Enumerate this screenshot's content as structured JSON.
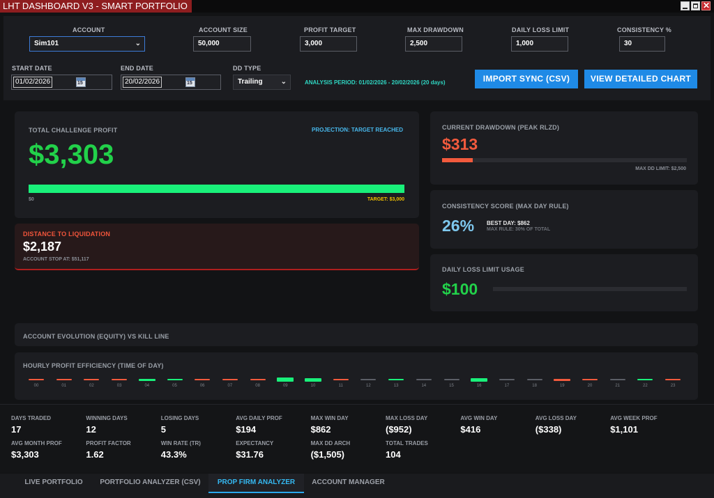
{
  "window": {
    "title": "LHT DASHBOARD V3 - SMART PORTFOLIO"
  },
  "settings": {
    "account_label": "ACCOUNT",
    "account_value": "Sim101",
    "account_size_label": "ACCOUNT SIZE",
    "account_size_value": "50,000",
    "profit_target_label": "PROFIT TARGET",
    "profit_target_value": "3,000",
    "max_drawdown_label": "MAX DRAWDOWN",
    "max_drawdown_value": "2,500",
    "daily_loss_label": "DAILY LOSS LIMIT",
    "daily_loss_value": "1,000",
    "consistency_label": "CONSISTENCY %",
    "consistency_value": "30",
    "start_date_label": "START DATE",
    "start_date_value": "01/02/2026",
    "end_date_label": "END DATE",
    "end_date_value": "20/02/2026",
    "calendar_day": "15",
    "dd_type_label": "DD TYPE",
    "dd_type_value": "Trailing",
    "analysis_period": "ANALYSIS PERIOD: 01/02/2026 - 20/02/2026 (20 days)",
    "import_button": "IMPORT SYNC (CSV)",
    "chart_button": "VIEW DETAILED CHART"
  },
  "profit_card": {
    "title": "TOTAL CHALLENGE PROFIT",
    "projection": "PROJECTION: TARGET REACHED",
    "value": "$3,303",
    "progress": 1.0,
    "scale_start": "$0",
    "target": "TARGET: $3,000"
  },
  "liquidation_card": {
    "title": "DISTANCE TO LIQUIDATION",
    "value": "$2,187",
    "stop": "ACCOUNT STOP AT: $51,117"
  },
  "drawdown_card": {
    "title": "CURRENT DRAWDOWN (PEAK RLZD)",
    "value": "$313",
    "progress": 0.125,
    "limit": "MAX DD LIMIT: $2,500"
  },
  "consistency_card": {
    "title": "CONSISTENCY SCORE (MAX DAY RULE)",
    "value": "26%",
    "best_day": "BEST DAY: $862",
    "max_rule": "MAX RULE: 30% OF TOTAL"
  },
  "daily_loss_card": {
    "title": "DAILY LOSS LIMIT USAGE",
    "value": "$100",
    "progress": 0.0
  },
  "equity_section": {
    "title": "ACCOUNT EVOLUTION (EQUITY) VS KILL LINE"
  },
  "hourly_section": {
    "title": "HOURLY PROFIT EFFICIENCY (TIME OF DAY)",
    "hours": [
      {
        "label": "00",
        "state": "loss",
        "size": 1
      },
      {
        "label": "01",
        "state": "loss",
        "size": 1
      },
      {
        "label": "02",
        "state": "loss",
        "size": 1
      },
      {
        "label": "03",
        "state": "loss",
        "size": 1
      },
      {
        "label": "04",
        "state": "win",
        "size": 2
      },
      {
        "label": "05",
        "state": "win",
        "size": 1
      },
      {
        "label": "06",
        "state": "loss",
        "size": 1
      },
      {
        "label": "07",
        "state": "loss",
        "size": 1
      },
      {
        "label": "08",
        "state": "loss",
        "size": 1
      },
      {
        "label": "09",
        "state": "win",
        "size": 4
      },
      {
        "label": "10",
        "state": "win",
        "size": 3
      },
      {
        "label": "11",
        "state": "loss",
        "size": 1
      },
      {
        "label": "12",
        "state": "neutral",
        "size": 1
      },
      {
        "label": "13",
        "state": "win",
        "size": 1
      },
      {
        "label": "14",
        "state": "neutral",
        "size": 1
      },
      {
        "label": "15",
        "state": "neutral",
        "size": 1
      },
      {
        "label": "16",
        "state": "win",
        "size": 3
      },
      {
        "label": "17",
        "state": "neutral",
        "size": 1
      },
      {
        "label": "18",
        "state": "neutral",
        "size": 1
      },
      {
        "label": "19",
        "state": "loss",
        "size": 2
      },
      {
        "label": "20",
        "state": "loss",
        "size": 1
      },
      {
        "label": "21",
        "state": "neutral",
        "size": 1
      },
      {
        "label": "22",
        "state": "win",
        "size": 1
      },
      {
        "label": "23",
        "state": "loss",
        "size": 1
      }
    ]
  },
  "stats": [
    {
      "label": "DAYS TRADED",
      "value": "17"
    },
    {
      "label": "WINNING DAYS",
      "value": "12"
    },
    {
      "label": "LOSING DAYS",
      "value": "5"
    },
    {
      "label": "AVG DAILY PROF",
      "value": "$194"
    },
    {
      "label": "MAX WIN DAY",
      "value": "$862"
    },
    {
      "label": "MAX LOSS DAY",
      "value": "($952)"
    },
    {
      "label": "AVG WIN DAY",
      "value": "$416"
    },
    {
      "label": "AVG LOSS DAY",
      "value": "($338)"
    },
    {
      "label": "AVG WEEK PROF",
      "value": "$1,101"
    },
    {
      "label": "AVG MONTH PROF",
      "value": "$3,303"
    },
    {
      "label": "PROFIT FACTOR",
      "value": "1.62"
    },
    {
      "label": "WIN RATE (TR)",
      "value": "43.3%"
    },
    {
      "label": "EXPECTANCY",
      "value": "$31.76"
    },
    {
      "label": "MAX DD ARCH",
      "value": "($1,505)"
    },
    {
      "label": "TOTAL TRADES",
      "value": "104"
    }
  ],
  "tabs": [
    "LIVE PORTFOLIO",
    "PORTFOLIO ANALYZER (CSV)",
    "PROP FIRM ANALYZER",
    "ACCOUNT MANAGER"
  ],
  "colors": {
    "win": "#19f07a",
    "loss": "#f25a3d",
    "neutral": "#5c5f66",
    "accent": "#1f8ae6",
    "profit": "#22d14a"
  }
}
